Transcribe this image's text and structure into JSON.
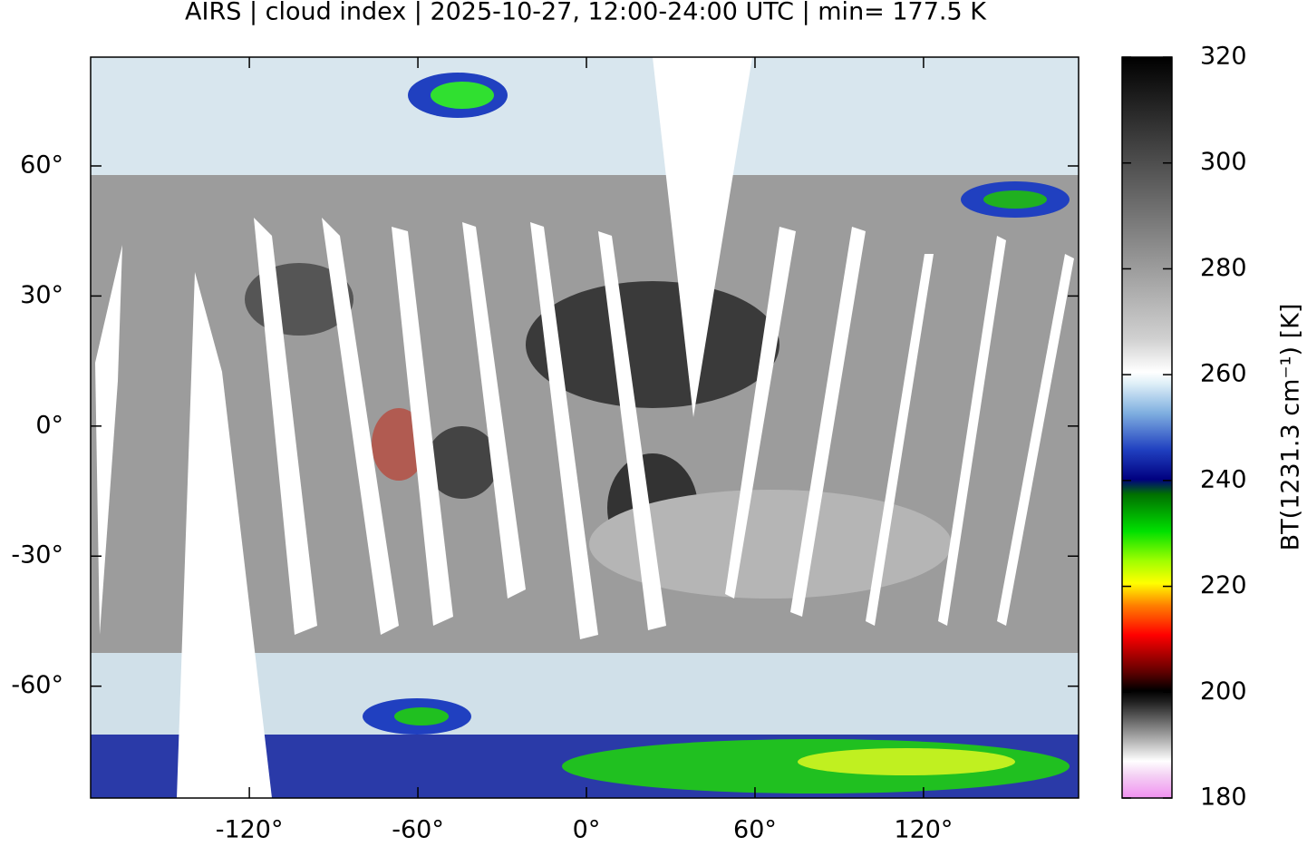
{
  "title": "AIRS | cloud index | 2025-10-27, 12:00-24:00 UTC | min= 177.5 K",
  "map": {
    "xlim": [
      -176.5,
      175.2
    ],
    "ylim": [
      -85.8,
      85.1
    ],
    "xticks": [
      {
        "value": -120,
        "label": "-120°"
      },
      {
        "value": -60,
        "label": "-60°"
      },
      {
        "value": 0,
        "label": "0°"
      },
      {
        "value": 60,
        "label": "60°"
      },
      {
        "value": 120,
        "label": "120°"
      }
    ],
    "yticks": [
      {
        "value": 60,
        "label": "60°"
      },
      {
        "value": 30,
        "label": "30°"
      },
      {
        "value": 0,
        "label": "0°"
      },
      {
        "value": -30,
        "label": "-30°"
      },
      {
        "value": -60,
        "label": "-60°"
      }
    ]
  },
  "colorbar": {
    "label": "BT(1231.3 cm⁻¹) [K]",
    "lim": [
      180,
      320
    ],
    "ticks": [
      180,
      200,
      220,
      240,
      260,
      280,
      300,
      320
    ]
  }
}
